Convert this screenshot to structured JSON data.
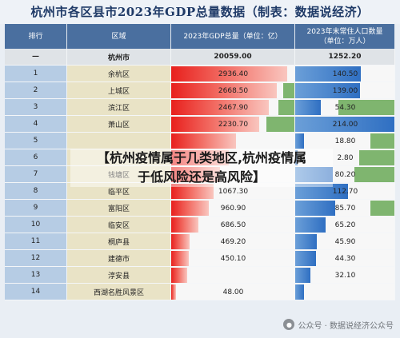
{
  "title": "杭州市各区县市2023年GDP总量数据（制表：数据说经济）",
  "columns": {
    "rank": "排行",
    "district": "区域",
    "gdp": "2023年GDP总量（单位：亿）",
    "pop": "2023年末常住人口数量（单位：万人）"
  },
  "colors": {
    "gdp_bar": "#e8201d",
    "pop_bar": "#2f6fc2",
    "highlight": "#7fb56f",
    "header": "#4a6f9f"
  },
  "chart_data": {
    "type": "table",
    "columns": [
      "排行",
      "区域",
      "2023年GDP总量（单位：亿）",
      "2023年末常住人口数量（单位：万人）"
    ],
    "total": {
      "rank": "—",
      "district": "杭州市",
      "gdp": "20059.00",
      "pop": "1252.20"
    },
    "rows": [
      {
        "rank": "1",
        "district": "余杭区",
        "gdp": "2936.40",
        "pop": "140.50"
      },
      {
        "rank": "2",
        "district": "上城区",
        "gdp": "2668.50",
        "pop": "139.00"
      },
      {
        "rank": "3",
        "district": "滨江区",
        "gdp": "2467.90",
        "pop": "54.30"
      },
      {
        "rank": "4",
        "district": "萧山区",
        "gdp": "2230.70",
        "pop": "214.00"
      },
      {
        "rank": "5",
        "district": "",
        "gdp": "",
        "pop": "18.80"
      },
      {
        "rank": "6",
        "district": "",
        "gdp": "",
        "pop": "2.80"
      },
      {
        "rank": "7",
        "district": "钱塘区",
        "gdp": "",
        "pop": "80.20"
      },
      {
        "rank": "8",
        "district": "临平区",
        "gdp": "1067.30",
        "pop": "112.70"
      },
      {
        "rank": "9",
        "district": "富阳区",
        "gdp": "960.90",
        "pop": "85.70"
      },
      {
        "rank": "10",
        "district": "临安区",
        "gdp": "686.50",
        "pop": "65.20"
      },
      {
        "rank": "11",
        "district": "桐庐县",
        "gdp": "469.20",
        "pop": "45.90"
      },
      {
        "rank": "12",
        "district": "建德市",
        "gdp": "450.10",
        "pop": "44.30"
      },
      {
        "rank": "13",
        "district": "淳安县",
        "gdp": "",
        "pop": "32.10"
      },
      {
        "rank": "14",
        "district": "西湖名胜风景区",
        "gdp": "48.00",
        "pop": ""
      }
    ]
  },
  "overlay": {
    "line1": "【杭州疫情属于几类地区,杭州疫情属",
    "line2": "于低风险还是高风险】"
  },
  "watermark": {
    "text": "公众号 · 数据说经济公众号"
  }
}
